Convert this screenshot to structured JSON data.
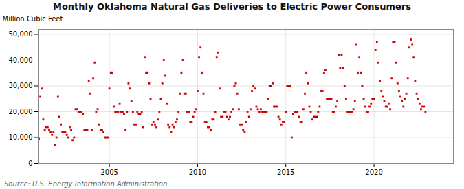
{
  "chart_data": {
    "type": "scatter",
    "title": "Monthly Oklahoma Natural Gas Deliveries to Electric Power Consumers",
    "ylabel": "Million Cubic Feet",
    "source": "Source: U.S. Energy Information Administration",
    "color": "#CC0000",
    "marker": "square",
    "grid": true,
    "xlim": [
      2001.0,
      2024.5
    ],
    "xticks": [
      2005,
      2010,
      2015,
      2020
    ],
    "ylim": [
      0,
      52000
    ],
    "yticks": [
      0,
      {
        "value": 10000,
        "label": "10,000"
      },
      {
        "value": 20000,
        "label": "20,000"
      },
      {
        "value": 30000,
        "label": "30,000"
      },
      {
        "value": 40000,
        "label": "40,000"
      },
      {
        "value": 50000,
        "label": "50,000"
      }
    ],
    "x": [
      2001,
      2001.083333,
      2001.166667,
      2001.25,
      2001.333333,
      2001.416667,
      2001.5,
      2001.583333,
      2001.666667,
      2001.75,
      2001.833333,
      2001.916667,
      2002,
      2002.083333,
      2002.166667,
      2002.25,
      2002.333333,
      2002.416667,
      2002.5,
      2002.583333,
      2002.666667,
      2002.75,
      2002.833333,
      2002.916667,
      2003,
      2003.083333,
      2003.166667,
      2003.25,
      2003.333333,
      2003.416667,
      2003.5,
      2003.583333,
      2003.666667,
      2003.75,
      2003.833333,
      2003.916667,
      2004,
      2004.083333,
      2004.166667,
      2004.25,
      2004.333333,
      2004.416667,
      2004.5,
      2004.583333,
      2004.666667,
      2004.75,
      2004.833333,
      2004.916667,
      2005,
      2005.083333,
      2005.166667,
      2005.25,
      2005.333333,
      2005.416667,
      2005.5,
      2005.583333,
      2005.666667,
      2005.75,
      2005.833333,
      2005.916667,
      2006,
      2006.083333,
      2006.166667,
      2006.25,
      2006.333333,
      2006.416667,
      2006.5,
      2006.583333,
      2006.666667,
      2006.75,
      2006.833333,
      2006.916667,
      2007,
      2007.083333,
      2007.166667,
      2007.25,
      2007.333333,
      2007.416667,
      2007.5,
      2007.583333,
      2007.666667,
      2007.75,
      2007.833333,
      2007.916667,
      2008,
      2008.083333,
      2008.166667,
      2008.25,
      2008.333333,
      2008.416667,
      2008.5,
      2008.583333,
      2008.666667,
      2008.75,
      2008.833333,
      2008.916667,
      2009,
      2009.083333,
      2009.166667,
      2009.25,
      2009.333333,
      2009.416667,
      2009.5,
      2009.583333,
      2009.666667,
      2009.75,
      2009.833333,
      2009.916667,
      2010,
      2010.083333,
      2010.166667,
      2010.25,
      2010.333333,
      2010.416667,
      2010.5,
      2010.583333,
      2010.666667,
      2010.75,
      2010.833333,
      2010.916667,
      2011,
      2011.083333,
      2011.166667,
      2011.25,
      2011.333333,
      2011.416667,
      2011.5,
      2011.583333,
      2011.666667,
      2011.75,
      2011.833333,
      2011.916667,
      2012,
      2012.083333,
      2012.166667,
      2012.25,
      2012.333333,
      2012.416667,
      2012.5,
      2012.583333,
      2012.666667,
      2012.75,
      2012.833333,
      2012.916667,
      2013,
      2013.083333,
      2013.166667,
      2013.25,
      2013.333333,
      2013.416667,
      2013.5,
      2013.583333,
      2013.666667,
      2013.75,
      2013.833333,
      2013.916667,
      2014,
      2014.083333,
      2014.166667,
      2014.25,
      2014.333333,
      2014.416667,
      2014.5,
      2014.583333,
      2014.666667,
      2014.75,
      2014.833333,
      2014.916667,
      2015,
      2015.083333,
      2015.166667,
      2015.25,
      2015.333333,
      2015.416667,
      2015.5,
      2015.583333,
      2015.666667,
      2015.75,
      2015.833333,
      2015.916667,
      2016,
      2016.083333,
      2016.166667,
      2016.25,
      2016.333333,
      2016.416667,
      2016.5,
      2016.583333,
      2016.666667,
      2016.75,
      2016.833333,
      2016.916667,
      2017,
      2017.083333,
      2017.166667,
      2017.25,
      2017.333333,
      2017.416667,
      2017.5,
      2017.583333,
      2017.666667,
      2017.75,
      2017.833333,
      2017.916667,
      2018,
      2018.083333,
      2018.166667,
      2018.25,
      2018.333333,
      2018.416667,
      2018.5,
      2018.583333,
      2018.666667,
      2018.75,
      2018.833333,
      2018.916667,
      2019,
      2019.083333,
      2019.166667,
      2019.25,
      2019.333333,
      2019.416667,
      2019.5,
      2019.583333,
      2019.666667,
      2019.75,
      2019.833333,
      2019.916667,
      2020,
      2020.083333,
      2020.166667,
      2020.25,
      2020.333333,
      2020.416667,
      2020.5,
      2020.583333,
      2020.666667,
      2020.75,
      2020.833333,
      2020.916667,
      2021,
      2021.083333,
      2021.166667,
      2021.25,
      2021.333333,
      2021.416667,
      2021.5,
      2021.583333,
      2021.666667,
      2021.75,
      2021.833333,
      2021.916667,
      2022,
      2022.083333,
      2022.166667,
      2022.25,
      2022.333333,
      2022.416667,
      2022.5,
      2022.583333,
      2022.666667,
      2022.75,
      2022.833333,
      2022.916667
    ],
    "values": [
      9500,
      26000,
      29000,
      17000,
      13000,
      14000,
      14000,
      13000,
      12000,
      11000,
      12000,
      7000,
      10000,
      26000,
      18000,
      15000,
      12000,
      12000,
      12000,
      11000,
      10000,
      14000,
      13000,
      9000,
      10000,
      21000,
      21000,
      20000,
      20000,
      20000,
      19000,
      13000,
      13000,
      13000,
      32000,
      27000,
      13000,
      33000,
      39000,
      20000,
      21000,
      15000,
      13000,
      13000,
      12000,
      10000,
      10000,
      10000,
      29000,
      35000,
      35000,
      22000,
      20000,
      20000,
      20000,
      23000,
      20000,
      20000,
      19000,
      13000,
      20000,
      31000,
      29000,
      24000,
      20000,
      15000,
      15000,
      20000,
      19000,
      19000,
      20000,
      14000,
      41000,
      35000,
      35000,
      31000,
      25000,
      15000,
      16000,
      15000,
      14000,
      17000,
      20000,
      25000,
      31000,
      40000,
      34000,
      23000,
      15000,
      14000,
      12000,
      15000,
      14000,
      16000,
      17000,
      20000,
      27000,
      35000,
      40000,
      27000,
      27000,
      20000,
      20000,
      16000,
      16000,
      18000,
      20000,
      21000,
      28000,
      41000,
      45000,
      35000,
      27000,
      16000,
      16000,
      14000,
      14000,
      13000,
      17000,
      17000,
      20000,
      41000,
      43000,
      29000,
      18000,
      18000,
      20000,
      20000,
      18000,
      17000,
      18000,
      20000,
      21000,
      30000,
      31000,
      27000,
      21000,
      15000,
      15000,
      13000,
      12000,
      16000,
      20000,
      18000,
      21000,
      28000,
      30000,
      29000,
      22000,
      21000,
      20000,
      21000,
      20000,
      20000,
      20000,
      20000,
      25000,
      30000,
      30000,
      31000,
      22000,
      22000,
      22000,
      18000,
      17000,
      15000,
      16000,
      16000,
      20000,
      30000,
      30000,
      30000,
      10000,
      19000,
      20000,
      20000,
      20000,
      18000,
      16000,
      16000,
      21000,
      27000,
      35000,
      31000,
      22000,
      20000,
      17000,
      18000,
      18000,
      18000,
      20000,
      22000,
      28000,
      28000,
      35000,
      36000,
      25000,
      25000,
      25000,
      25000,
      20000,
      20000,
      22000,
      24000,
      42000,
      37000,
      42000,
      37000,
      30000,
      25000,
      20000,
      20000,
      20000,
      20000,
      21000,
      24000,
      46000,
      35000,
      41000,
      35000,
      30000,
      25000,
      22000,
      20000,
      20000,
      22000,
      23000,
      25000,
      25000,
      44000,
      47000,
      39000,
      32000,
      28000,
      26000,
      24000,
      22000,
      22000,
      23000,
      21000,
      33000,
      47000,
      47000,
      39000,
      31000,
      28000,
      26000,
      24000,
      22000,
      25000,
      27000,
      33000,
      45000,
      48000,
      46000,
      41000,
      32000,
      27000,
      25000,
      23000,
      21000,
      22000,
      22000,
      20000
    ]
  }
}
